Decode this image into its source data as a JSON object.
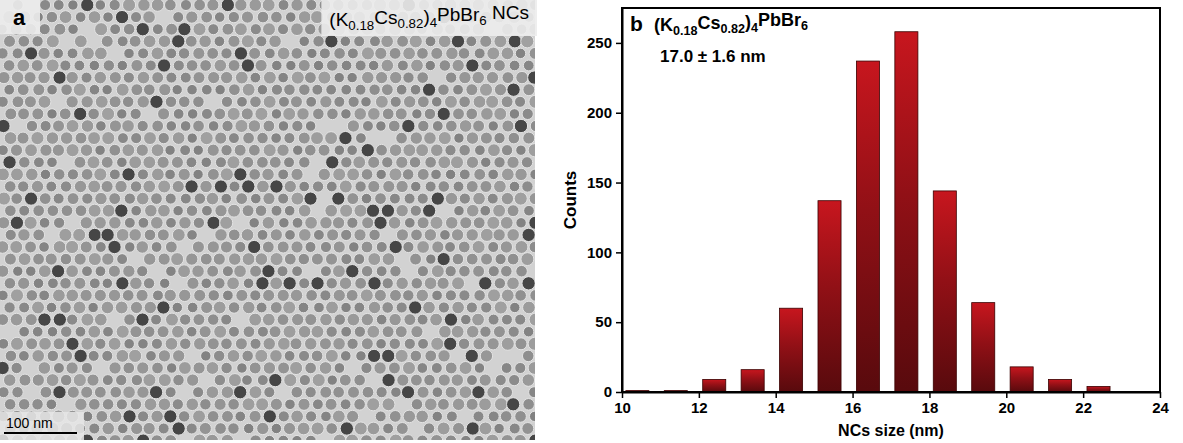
{
  "image_panel": {
    "panel_label": "a",
    "label": "(K0.18Cs0.82)4PbBr6 NCs",
    "scale_bar": "100 nm"
  },
  "chart_data": {
    "type": "histogram",
    "panel_label": "b",
    "title": "(K0.18Cs0.82)4PbBr6",
    "subtitle": "17.0 ± 1.6 nm",
    "x_label": "NCs size (nm)",
    "y_label": "Counts",
    "bins": [
      9.9,
      10.9,
      11.9,
      12.9,
      13.9,
      14.9,
      15.9,
      16.9,
      17.9,
      18.9,
      19.9,
      20.9,
      21.9,
      22.9
    ],
    "values": [
      1,
      1,
      9,
      16,
      60,
      137,
      237,
      258,
      144,
      64,
      18,
      9,
      4
    ],
    "color": "#b3141b",
    "xlim": [
      10,
      24
    ],
    "xticks": [
      10,
      12,
      14,
      16,
      18,
      20,
      22,
      24
    ],
    "ylim": [
      0,
      275
    ],
    "yticks": [
      0,
      50,
      100,
      150,
      200,
      250
    ]
  }
}
